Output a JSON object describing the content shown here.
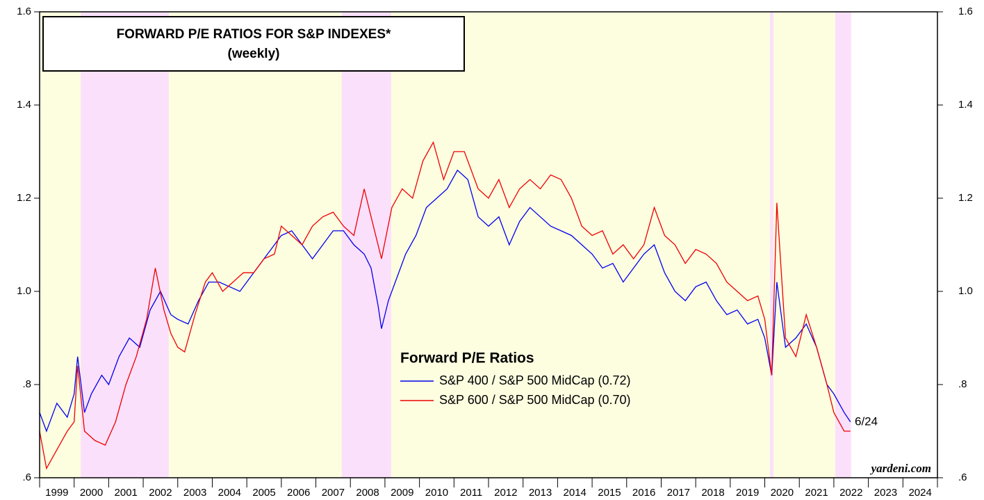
{
  "chart_data": {
    "type": "line",
    "title": "FORWARD P/E RATIOS FOR S&P INDEXES*",
    "subtitle": "(weekly)",
    "legend_title": "Forward P/E Ratios",
    "annotation": "6/24",
    "source": "yardeni.com",
    "background": "#fdfde0",
    "xlim": [
      1999,
      2025
    ],
    "xticks": [
      1999,
      2000,
      2001,
      2002,
      2003,
      2004,
      2005,
      2006,
      2007,
      2008,
      2009,
      2010,
      2011,
      2012,
      2013,
      2014,
      2015,
      2016,
      2017,
      2018,
      2019,
      2020,
      2021,
      2022,
      2023,
      2024,
      2025
    ],
    "x_labels": [
      "1999",
      "2000",
      "2001",
      "2002",
      "2003",
      "2004",
      "2005",
      "2006",
      "2007",
      "2008",
      "2009",
      "2010",
      "2011",
      "2012",
      "2013",
      "2014",
      "2015",
      "2016",
      "2017",
      "2018",
      "2019",
      "2020",
      "2021",
      "2022",
      "2023",
      "2024"
    ],
    "ylim": [
      0.6,
      1.6
    ],
    "yticks": [
      {
        "value": 0.6,
        "label": ".6"
      },
      {
        "value": 0.8,
        "label": ".8"
      },
      {
        "value": 1.0,
        "label": "1.0"
      },
      1.2,
      1.4,
      1.6
    ],
    "shading": {
      "color": "#fbe0fb",
      "ranges": [
        [
          2000.19,
          2002.74
        ],
        [
          2007.75,
          2009.18
        ],
        [
          2020.15,
          2020.25
        ],
        [
          2022.04,
          2022.5
        ]
      ]
    },
    "shaded_until": 2022.5,
    "series": [
      {
        "name": "S&P 400 / S&P 500 MidCap (0.72)",
        "color": "#0000ee",
        "x": [
          1999.0,
          1999.2,
          1999.5,
          1999.8,
          2000.0,
          2000.1,
          2000.3,
          2000.5,
          2000.8,
          2001.0,
          2001.3,
          2001.6,
          2001.9,
          2002.2,
          2002.5,
          2002.8,
          2003.0,
          2003.3,
          2003.6,
          2003.9,
          2004.2,
          2004.5,
          2004.8,
          2005.1,
          2005.4,
          2005.7,
          2006.0,
          2006.3,
          2006.6,
          2006.9,
          2007.2,
          2007.5,
          2007.8,
          2008.1,
          2008.4,
          2008.6,
          2008.8,
          2008.9,
          2009.1,
          2009.3,
          2009.6,
          2009.9,
          2010.2,
          2010.5,
          2010.8,
          2011.1,
          2011.4,
          2011.7,
          2012.0,
          2012.3,
          2012.6,
          2012.9,
          2013.2,
          2013.5,
          2013.8,
          2014.1,
          2014.4,
          2014.7,
          2015.0,
          2015.3,
          2015.6,
          2015.9,
          2016.2,
          2016.5,
          2016.8,
          2017.1,
          2017.4,
          2017.7,
          2018.0,
          2018.3,
          2018.6,
          2018.9,
          2019.2,
          2019.5,
          2019.8,
          2020.0,
          2020.2,
          2020.35,
          2020.6,
          2020.9,
          2021.2,
          2021.5,
          2021.8,
          2022.0,
          2022.3,
          2022.48
        ],
        "values": [
          0.74,
          0.7,
          0.76,
          0.73,
          0.78,
          0.86,
          0.74,
          0.78,
          0.82,
          0.8,
          0.86,
          0.9,
          0.88,
          0.96,
          1.0,
          0.95,
          0.94,
          0.93,
          0.98,
          1.02,
          1.02,
          1.01,
          1.0,
          1.03,
          1.06,
          1.09,
          1.12,
          1.13,
          1.1,
          1.07,
          1.1,
          1.13,
          1.13,
          1.1,
          1.08,
          1.05,
          0.97,
          0.92,
          0.98,
          1.02,
          1.08,
          1.12,
          1.18,
          1.2,
          1.22,
          1.26,
          1.24,
          1.16,
          1.14,
          1.16,
          1.1,
          1.15,
          1.18,
          1.16,
          1.14,
          1.13,
          1.12,
          1.1,
          1.08,
          1.05,
          1.06,
          1.02,
          1.05,
          1.08,
          1.1,
          1.04,
          1.0,
          0.98,
          1.01,
          1.02,
          0.98,
          0.95,
          0.96,
          0.93,
          0.94,
          0.9,
          0.82,
          1.02,
          0.88,
          0.9,
          0.93,
          0.88,
          0.8,
          0.78,
          0.74,
          0.72
        ]
      },
      {
        "name": "S&P 600 / S&P 500 MidCap (0.70)",
        "color": "#ee0000",
        "x": [
          1999.0,
          1999.2,
          1999.5,
          1999.8,
          2000.0,
          2000.1,
          2000.3,
          2000.6,
          2000.9,
          2001.2,
          2001.5,
          2001.8,
          2002.1,
          2002.35,
          2002.6,
          2002.8,
          2003.0,
          2003.2,
          2003.5,
          2003.8,
          2004.0,
          2004.3,
          2004.6,
          2004.9,
          2005.2,
          2005.5,
          2005.8,
          2006.0,
          2006.3,
          2006.6,
          2006.9,
          2007.2,
          2007.5,
          2007.8,
          2008.1,
          2008.4,
          2008.6,
          2008.9,
          2009.2,
          2009.5,
          2009.8,
          2010.1,
          2010.4,
          2010.7,
          2011.0,
          2011.3,
          2011.7,
          2012.0,
          2012.3,
          2012.6,
          2012.9,
          2013.2,
          2013.5,
          2013.8,
          2014.1,
          2014.4,
          2014.7,
          2015.0,
          2015.3,
          2015.6,
          2015.9,
          2016.2,
          2016.5,
          2016.8,
          2017.1,
          2017.4,
          2017.7,
          2018.0,
          2018.3,
          2018.6,
          2018.9,
          2019.2,
          2019.5,
          2019.8,
          2020.0,
          2020.2,
          2020.35,
          2020.6,
          2020.9,
          2021.2,
          2021.5,
          2021.8,
          2022.0,
          2022.3,
          2022.48
        ],
        "values": [
          0.7,
          0.62,
          0.66,
          0.7,
          0.72,
          0.84,
          0.7,
          0.68,
          0.67,
          0.72,
          0.8,
          0.86,
          0.94,
          1.05,
          0.96,
          0.91,
          0.88,
          0.87,
          0.95,
          1.02,
          1.04,
          1.0,
          1.02,
          1.04,
          1.04,
          1.07,
          1.08,
          1.14,
          1.12,
          1.1,
          1.14,
          1.16,
          1.17,
          1.14,
          1.12,
          1.22,
          1.16,
          1.07,
          1.18,
          1.22,
          1.2,
          1.28,
          1.32,
          1.24,
          1.3,
          1.3,
          1.22,
          1.2,
          1.24,
          1.18,
          1.22,
          1.24,
          1.22,
          1.25,
          1.24,
          1.2,
          1.14,
          1.12,
          1.13,
          1.08,
          1.1,
          1.07,
          1.1,
          1.18,
          1.12,
          1.1,
          1.06,
          1.09,
          1.08,
          1.06,
          1.02,
          1.0,
          0.98,
          0.99,
          0.94,
          0.82,
          1.19,
          0.9,
          0.86,
          0.95,
          0.88,
          0.8,
          0.74,
          0.7,
          0.7
        ]
      }
    ]
  }
}
